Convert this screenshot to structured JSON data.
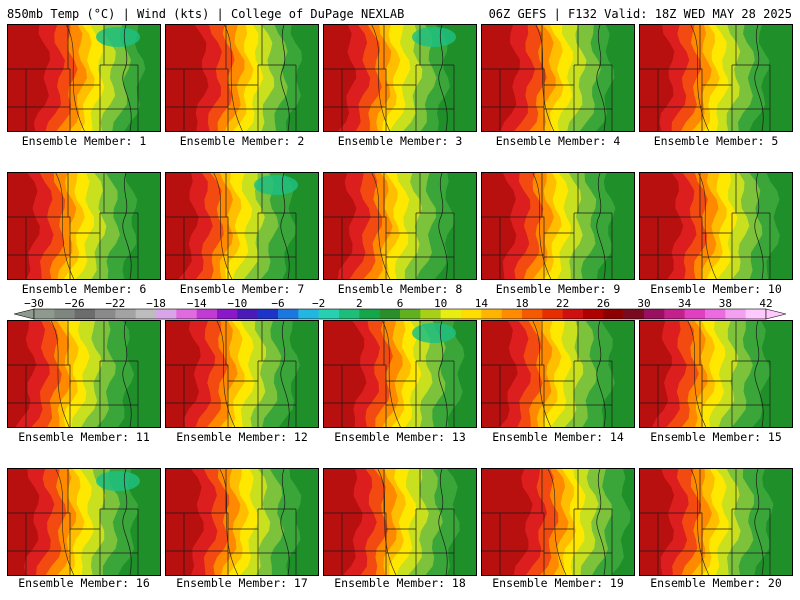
{
  "header": {
    "left_title": "850mb Temp (°C) | Wind (kts) | College of DuPage NEXLAB",
    "right_title": "06Z GEFS | F132 Valid: 18Z WED MAY 28 2025"
  },
  "members": [
    {
      "label": "Ensemble Member: 1",
      "number": 1,
      "warm_extent": 0.45
    },
    {
      "label": "Ensemble Member: 2",
      "number": 2,
      "warm_extent": 0.45
    },
    {
      "label": "Ensemble Member: 3",
      "number": 3,
      "warm_extent": 0.38
    },
    {
      "label": "Ensemble Member: 4",
      "number": 4,
      "warm_extent": 0.42
    },
    {
      "label": "Ensemble Member: 5",
      "number": 5,
      "warm_extent": 0.4
    },
    {
      "label": "Ensemble Member: 6",
      "number": 6,
      "warm_extent": 0.38
    },
    {
      "label": "Ensemble Member: 7",
      "number": 7,
      "warm_extent": 0.38
    },
    {
      "label": "Ensemble Member: 8",
      "number": 8,
      "warm_extent": 0.38
    },
    {
      "label": "Ensemble Member: 9",
      "number": 9,
      "warm_extent": 0.4
    },
    {
      "label": "Ensemble Member: 10",
      "number": 10,
      "warm_extent": 0.45
    },
    {
      "label": "Ensemble Member: 11",
      "number": 11,
      "warm_extent": 0.35
    },
    {
      "label": "Ensemble Member: 12",
      "number": 12,
      "warm_extent": 0.4
    },
    {
      "label": "Ensemble Member: 13",
      "number": 13,
      "warm_extent": 0.45
    },
    {
      "label": "Ensemble Member: 14",
      "number": 14,
      "warm_extent": 0.4
    },
    {
      "label": "Ensemble Member: 15",
      "number": 15,
      "warm_extent": 0.38
    },
    {
      "label": "Ensemble Member: 16",
      "number": 16,
      "warm_extent": 0.38
    },
    {
      "label": "Ensemble Member: 17",
      "number": 17,
      "warm_extent": 0.42
    },
    {
      "label": "Ensemble Member: 18",
      "number": 18,
      "warm_extent": 0.42
    },
    {
      "label": "Ensemble Member: 19",
      "number": 19,
      "warm_extent": 0.5
    },
    {
      "label": "Ensemble Member: 20",
      "number": 20,
      "warm_extent": 0.4
    }
  ],
  "colorbar": {
    "tick_labels": [
      "−30",
      "−26",
      "−22",
      "−18",
      "−14",
      "−10",
      "−6",
      "−2",
      "2",
      "6",
      "10",
      "14",
      "18",
      "22",
      "26",
      "30",
      "34",
      "38",
      "42"
    ],
    "colors": [
      "#8e9a8e",
      "#7f867f",
      "#6c6c6c",
      "#8a8a8a",
      "#a3a3a3",
      "#bdbdbd",
      "#d8a6e8",
      "#e06be0",
      "#c23ad4",
      "#8a18c8",
      "#4a1ab8",
      "#1e34c8",
      "#1c78e0",
      "#22b6e0",
      "#27d0b0",
      "#1ebe7a",
      "#15a64a",
      "#2a8f2a",
      "#60b020",
      "#a8d018",
      "#e8ee12",
      "#ffdd00",
      "#ffb400",
      "#ff8c00",
      "#f55a00",
      "#e62e00",
      "#cf1010",
      "#b00000",
      "#8c0000",
      "#7a0a20",
      "#9a1060",
      "#c4208c",
      "#e040c0",
      "#ee6ae0",
      "#f4a0f0",
      "#ffc8ff"
    ]
  },
  "palette": {
    "dark_green": "#1f8f2a",
    "green": "#3aa63a",
    "light_green": "#7cc23a",
    "yellow_green": "#c9e01e",
    "yellow": "#ffe800",
    "gold": "#ffbf00",
    "orange": "#ff8a00",
    "red_orange": "#f24a10",
    "red": "#dc1e1e",
    "dark_red": "#b80f0f",
    "teal": "#20c080"
  }
}
